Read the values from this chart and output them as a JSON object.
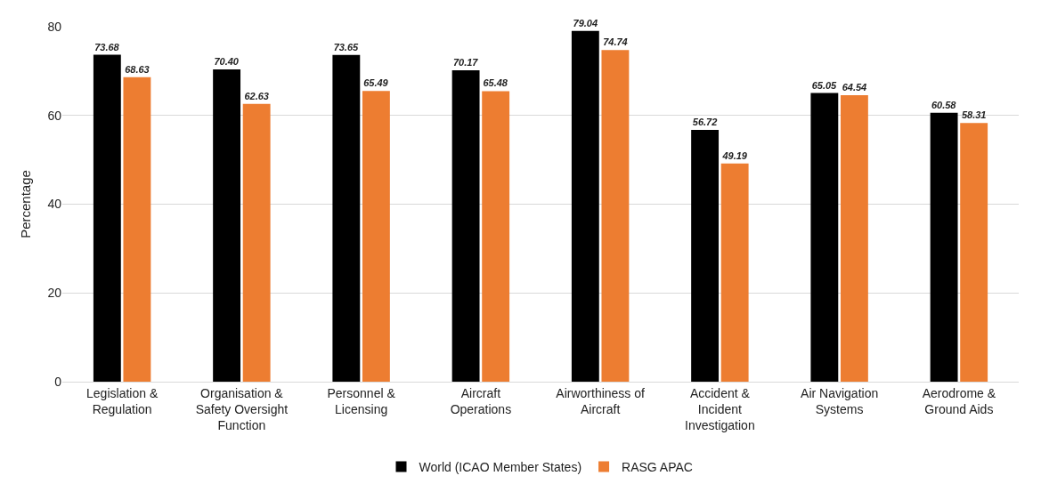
{
  "chart_data": {
    "type": "bar",
    "ylabel": "Percentage",
    "categories": [
      "Legislation &\nRegulation",
      "Organisation &\nSafety Oversight\nFunction",
      "Personnel &\nLicensing",
      "Aircraft\nOperations",
      "Airworthiness of\nAircraft",
      "Accident &\nIncident\nInvestigation",
      "Air Navigation\nSystems",
      "Aerodrome &\nGround Aids"
    ],
    "series": [
      {
        "name": "World (ICAO Member States)",
        "color": "#000000",
        "values": [
          73.68,
          70.4,
          73.65,
          70.17,
          79.04,
          56.72,
          65.05,
          60.58
        ],
        "value_labels": [
          "73.68",
          "70.40",
          "73.65",
          "70.17",
          "79.04",
          "56.72",
          "65.05",
          "60.58"
        ]
      },
      {
        "name": "RASG APAC",
        "color": "#ed7d31",
        "values": [
          68.63,
          62.63,
          65.49,
          65.48,
          74.74,
          49.19,
          64.54,
          58.31
        ],
        "value_labels": [
          "68.63",
          "62.63",
          "65.49",
          "65.48",
          "74.74",
          "49.19",
          "64.54",
          "58.31"
        ]
      }
    ],
    "ylim": [
      0,
      80
    ],
    "yticks": [
      0,
      20,
      40,
      60,
      80
    ],
    "grid": "y",
    "legend": "bottom"
  }
}
